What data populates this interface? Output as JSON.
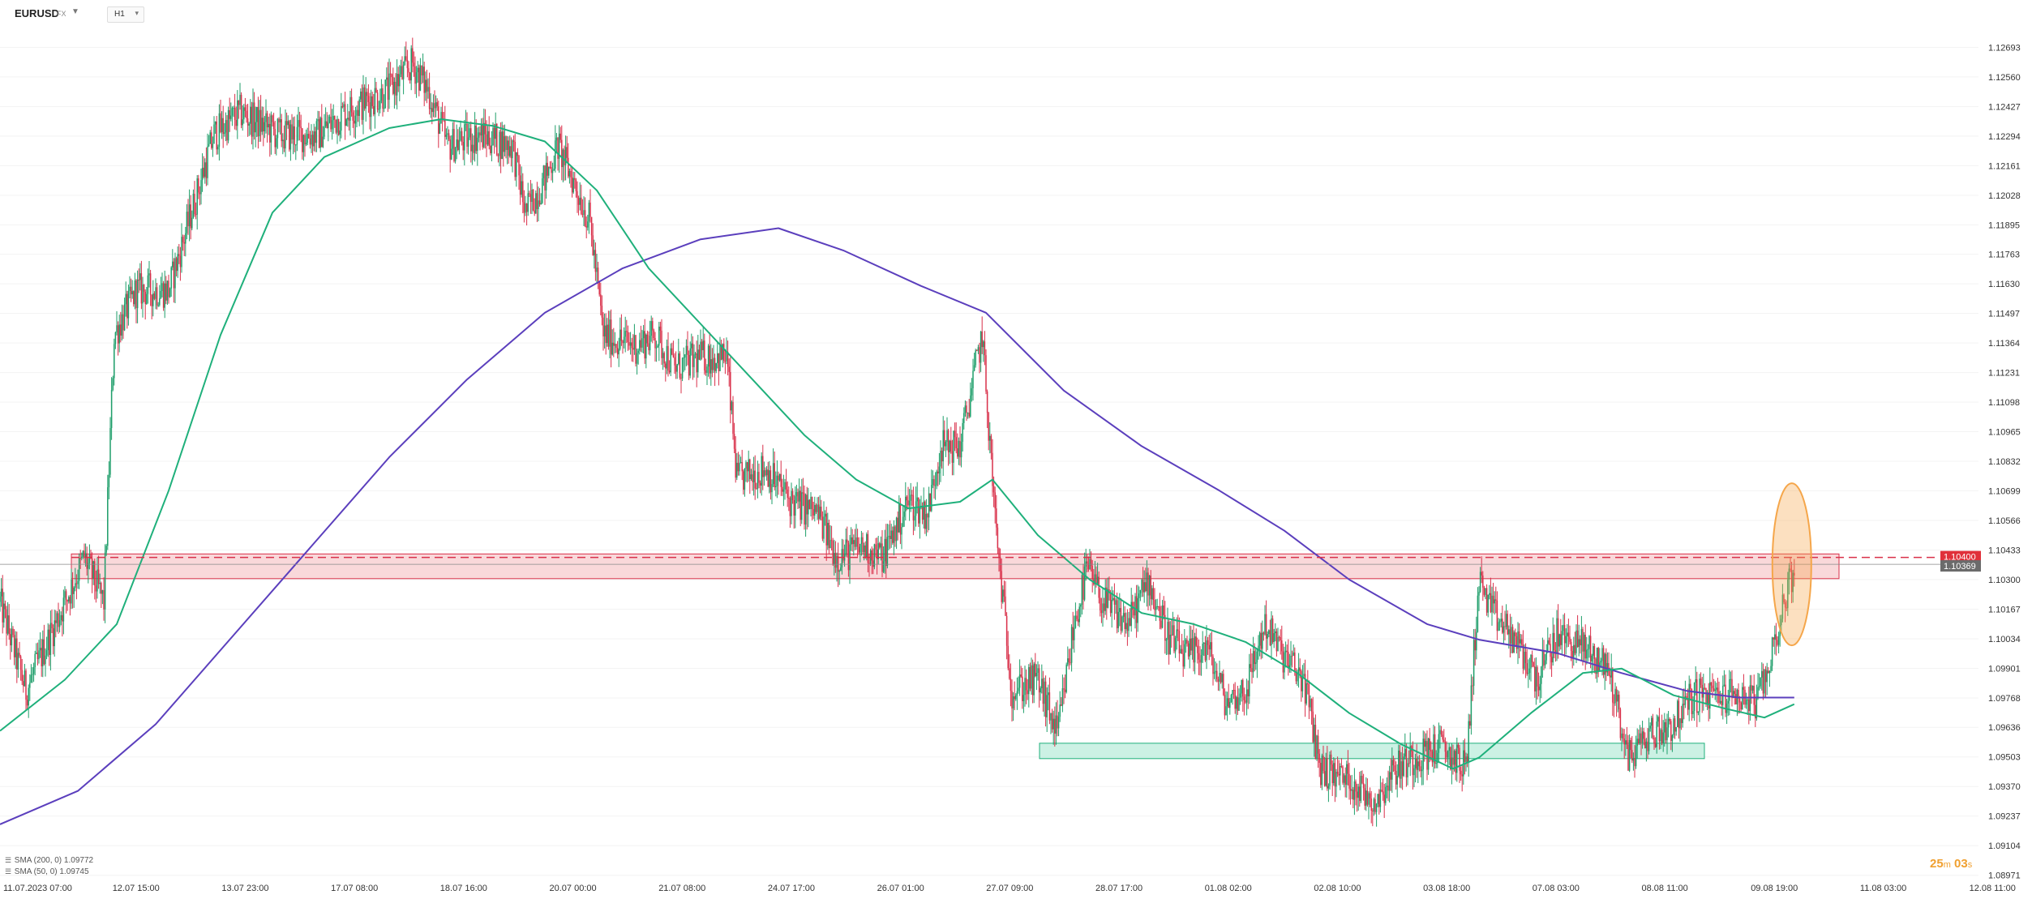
{
  "header": {
    "symbol": "EURUSD",
    "symbol_type": "FX",
    "timeframe": "H1"
  },
  "indicators": [
    {
      "label": "SMA (200, 0) 1.09772",
      "color": "#5b3fbd"
    },
    {
      "label": "SMA (50, 0) 1.09745",
      "color": "#1fb07b"
    }
  ],
  "timer": {
    "minutes": "25",
    "m_unit": "m",
    "seconds": "03",
    "s_unit": "s"
  },
  "colors": {
    "bull": "#1e9e6a",
    "bear": "#d9304a",
    "sma200": "#5b3fbd",
    "sma50": "#1fb07b",
    "resistance_fill": "#f6c3c6",
    "resistance_stroke": "#d9304a",
    "support_fill": "#bfeedd",
    "support_stroke": "#1fb07b",
    "highlight": "#f5a64a",
    "price_badge_red": "#e0303a",
    "price_badge_gray": "#6b6b6b"
  },
  "chart_data": {
    "type": "candlestick",
    "symbol": "EURUSD",
    "timeframe": "H1",
    "ylim": [
      1.0897,
      1.1276
    ],
    "y_ticks": [
      "1.12693",
      "1.12560",
      "1.12427",
      "1.12294",
      "1.12161",
      "1.12028",
      "1.11895",
      "1.11763",
      "1.11630",
      "1.11497",
      "1.11364",
      "1.11231",
      "1.11098",
      "1.10965",
      "1.10832",
      "1.10699",
      "1.10566",
      "1.10433",
      "1.10300",
      "1.10167",
      "1.10034",
      "1.09901",
      "1.09768",
      "1.09636",
      "1.09503",
      "1.09370",
      "1.09237",
      "1.09104",
      "1.08971"
    ],
    "x_ticks": [
      "11.07.2023 07:00",
      "12.07 15:00",
      "13.07 23:00",
      "17.07 08:00",
      "18.07 16:00",
      "20.07 00:00",
      "21.07 08:00",
      "24.07 17:00",
      "26.07 01:00",
      "27.07 09:00",
      "28.07 17:00",
      "01.08 02:00",
      "02.08 10:00",
      "03.08 18:00",
      "07.08 03:00",
      "08.08 11:00",
      "09.08 19:00",
      "11.08 03:00",
      "12.08 11:00"
    ],
    "price_labels": {
      "resistance": "1.10400",
      "current": "1.10369"
    },
    "resistance_zone": [
      1.1033,
      1.1039
    ],
    "support_zone": [
      1.0951,
      1.0955
    ],
    "close_path": [
      [
        0,
        1.102
      ],
      [
        20,
        1.098
      ],
      [
        50,
        1.102
      ],
      [
        65,
        1.104
      ],
      [
        80,
        1.102
      ],
      [
        88,
        1.114
      ],
      [
        105,
        1.116
      ],
      [
        130,
        1.116
      ],
      [
        150,
        1.12
      ],
      [
        165,
        1.123
      ],
      [
        185,
        1.124
      ],
      [
        215,
        1.123
      ],
      [
        245,
        1.123
      ],
      [
        265,
        1.124
      ],
      [
        300,
        1.125
      ],
      [
        318,
        1.1262
      ],
      [
        330,
        1.125
      ],
      [
        345,
        1.1225
      ],
      [
        370,
        1.123
      ],
      [
        395,
        1.1225
      ],
      [
        405,
        1.1195
      ],
      [
        420,
        1.121
      ],
      [
        430,
        1.1225
      ],
      [
        445,
        1.1205
      ],
      [
        455,
        1.119
      ],
      [
        465,
        1.114
      ],
      [
        490,
        1.1135
      ],
      [
        505,
        1.114
      ],
      [
        520,
        1.1125
      ],
      [
        540,
        1.113
      ],
      [
        560,
        1.113
      ],
      [
        568,
        1.1075
      ],
      [
        590,
        1.108
      ],
      [
        610,
        1.1065
      ],
      [
        630,
        1.106
      ],
      [
        645,
        1.104
      ],
      [
        665,
        1.1045
      ],
      [
        680,
        1.104
      ],
      [
        700,
        1.1065
      ],
      [
        715,
        1.106
      ],
      [
        725,
        1.109
      ],
      [
        740,
        1.109
      ],
      [
        757,
        1.114
      ],
      [
        768,
        1.105
      ],
      [
        780,
        1.098
      ],
      [
        800,
        1.0985
      ],
      [
        815,
        1.096
      ],
      [
        828,
        1.101
      ],
      [
        838,
        1.1035
      ],
      [
        850,
        1.102
      ],
      [
        870,
        1.101
      ],
      [
        885,
        1.103
      ],
      [
        900,
        1.1005
      ],
      [
        915,
        1.0995
      ],
      [
        930,
        1.1
      ],
      [
        945,
        1.0975
      ],
      [
        960,
        1.098
      ],
      [
        975,
        1.101
      ],
      [
        990,
        1.0995
      ],
      [
        1005,
        1.0985
      ],
      [
        1018,
        1.0945
      ],
      [
        1040,
        1.094
      ],
      [
        1060,
        1.093
      ],
      [
        1075,
        1.0945
      ],
      [
        1090,
        1.095
      ],
      [
        1110,
        1.0955
      ],
      [
        1130,
        1.0945
      ],
      [
        1140,
        1.103
      ],
      [
        1150,
        1.1015
      ],
      [
        1165,
        1.1005
      ],
      [
        1185,
        1.0985
      ],
      [
        1200,
        1.1005
      ],
      [
        1220,
        1.1
      ],
      [
        1240,
        1.099
      ],
      [
        1255,
        1.095
      ],
      [
        1270,
        1.096
      ],
      [
        1290,
        1.0965
      ],
      [
        1305,
        1.0978
      ],
      [
        1320,
        1.0978
      ],
      [
        1340,
        1.0978
      ],
      [
        1355,
        1.0975
      ],
      [
        1365,
        1.0995
      ],
      [
        1375,
        1.102
      ],
      [
        1383,
        1.1034
      ]
    ],
    "sma200_path": [
      [
        0,
        1.092
      ],
      [
        60,
        1.0935
      ],
      [
        120,
        1.0965
      ],
      [
        180,
        1.1005
      ],
      [
        240,
        1.1045
      ],
      [
        300,
        1.1085
      ],
      [
        360,
        1.112
      ],
      [
        420,
        1.115
      ],
      [
        480,
        1.117
      ],
      [
        540,
        1.1183
      ],
      [
        600,
        1.1188
      ],
      [
        650,
        1.1178
      ],
      [
        710,
        1.1162
      ],
      [
        760,
        1.115
      ],
      [
        820,
        1.1115
      ],
      [
        880,
        1.109
      ],
      [
        940,
        1.107
      ],
      [
        990,
        1.1052
      ],
      [
        1040,
        1.103
      ],
      [
        1100,
        1.101
      ],
      [
        1140,
        1.1003
      ],
      [
        1200,
        1.0997
      ],
      [
        1250,
        1.0988
      ],
      [
        1300,
        1.098
      ],
      [
        1340,
        1.0977
      ],
      [
        1383,
        1.0977
      ]
    ],
    "sma50_path": [
      [
        0,
        1.0962
      ],
      [
        50,
        1.0985
      ],
      [
        90,
        1.101
      ],
      [
        130,
        1.107
      ],
      [
        170,
        1.114
      ],
      [
        210,
        1.1195
      ],
      [
        250,
        1.122
      ],
      [
        300,
        1.1233
      ],
      [
        340,
        1.1237
      ],
      [
        380,
        1.1234
      ],
      [
        420,
        1.1227
      ],
      [
        460,
        1.1205
      ],
      [
        500,
        1.117
      ],
      [
        540,
        1.1145
      ],
      [
        580,
        1.112
      ],
      [
        620,
        1.1095
      ],
      [
        660,
        1.1075
      ],
      [
        700,
        1.1062
      ],
      [
        740,
        1.1065
      ],
      [
        765,
        1.1075
      ],
      [
        800,
        1.105
      ],
      [
        840,
        1.103
      ],
      [
        880,
        1.1015
      ],
      [
        920,
        1.101
      ],
      [
        960,
        1.1002
      ],
      [
        1000,
        1.0988
      ],
      [
        1040,
        1.097
      ],
      [
        1080,
        1.0956
      ],
      [
        1120,
        1.0945
      ],
      [
        1140,
        1.095
      ],
      [
        1180,
        1.097
      ],
      [
        1220,
        1.0988
      ],
      [
        1250,
        1.099
      ],
      [
        1290,
        1.0978
      ],
      [
        1330,
        1.0972
      ],
      [
        1360,
        1.0968
      ],
      [
        1383,
        1.0974
      ]
    ]
  }
}
